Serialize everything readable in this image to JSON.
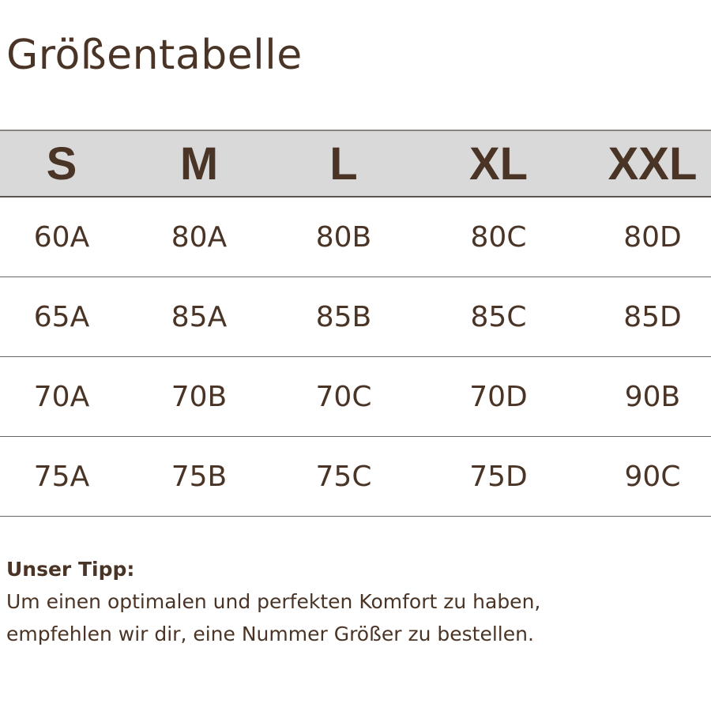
{
  "title": "Größentabelle",
  "table": {
    "headers": [
      "S",
      "M",
      "L",
      "XL",
      "XXL"
    ],
    "rows": [
      [
        "60A",
        "80A",
        "80B",
        "80C",
        "80D"
      ],
      [
        "65A",
        "85A",
        "85B",
        "85C",
        "85D"
      ],
      [
        "70A",
        "70B",
        "70C",
        "70D",
        "90B"
      ],
      [
        "75A",
        "75B",
        "75C",
        "75D",
        "90C"
      ]
    ]
  },
  "tip": {
    "heading": "Unser Tipp:",
    "line1": "Um einen optimalen und perfekten Komfort zu haben,",
    "line2": "empfehlen wir dir, eine Nummer Größer zu bestellen."
  },
  "colors": {
    "text": "#4a3426",
    "header_bg": "#d9d9d9"
  }
}
